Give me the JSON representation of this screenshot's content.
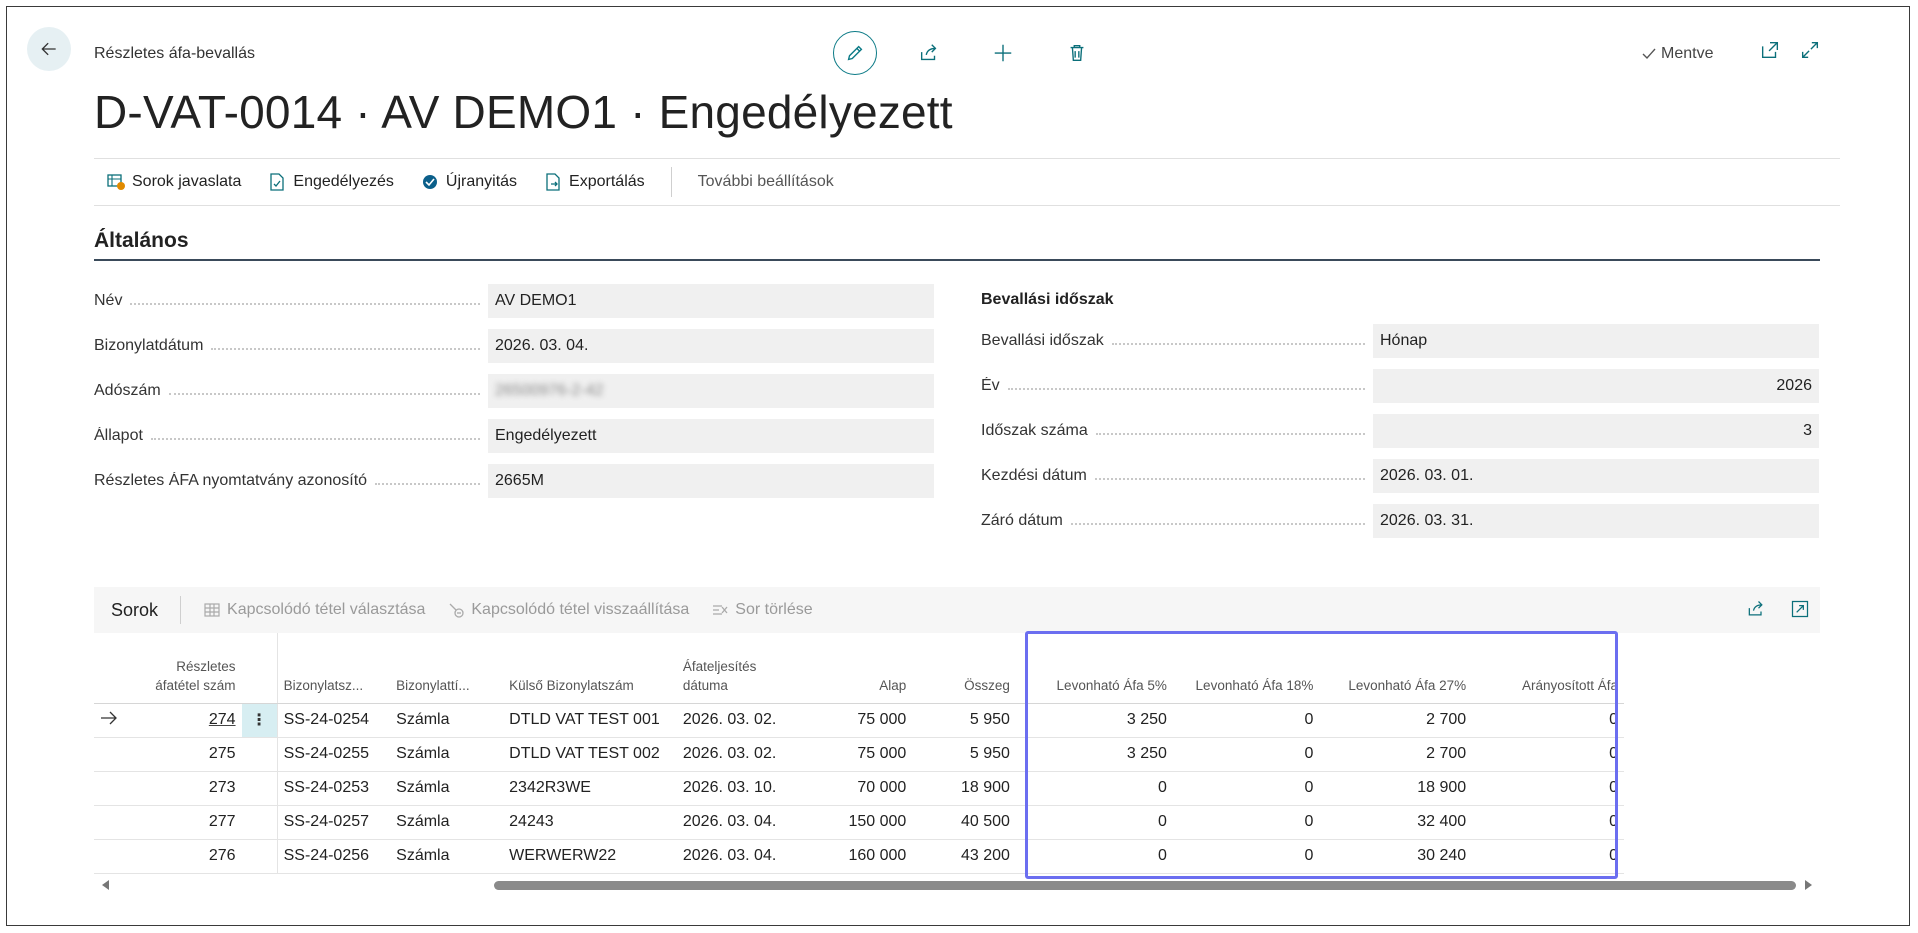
{
  "header": {
    "breadcrumb": "Részletes áfa-bevallás",
    "title": "D-VAT-0014 · AV DEMO1 · Engedélyezett",
    "saved_label": "Mentve"
  },
  "actions": [
    {
      "label": "Sorok javaslata",
      "icon": "suggest-lines-icon"
    },
    {
      "label": "Engedélyezés",
      "icon": "release-icon"
    },
    {
      "label": "Újranyitás",
      "icon": "reopen-icon"
    },
    {
      "label": "Exportálás",
      "icon": "export-icon"
    }
  ],
  "more_options": "További beállítások",
  "general": {
    "title": "Általános",
    "left": [
      {
        "label": "Név",
        "value": "AV DEMO1"
      },
      {
        "label": "Bizonylatdátum",
        "value": "2026. 03. 04."
      },
      {
        "label": "Adószám",
        "value": "26500976-2-42"
      },
      {
        "label": "Állapot",
        "value": "Engedélyezett"
      },
      {
        "label": "Részletes ÁFA nyomtatvány azonosító",
        "value": "2665M"
      }
    ],
    "right_title": "Bevallási időszak",
    "right": [
      {
        "label": "Bevallási időszak",
        "value": "Hónap"
      },
      {
        "label": "Év",
        "value": "2026"
      },
      {
        "label": "Időszak száma",
        "value": "3"
      },
      {
        "label": "Kezdési dátum",
        "value": "2026. 03. 01."
      },
      {
        "label": "Záró dátum",
        "value": "2026. 03. 31."
      }
    ]
  },
  "lines": {
    "title": "Sorok",
    "actions": [
      {
        "label": "Kapcsolódó tétel választása"
      },
      {
        "label": "Kapcsolódó tétel visszaállítása"
      },
      {
        "label": "Sor törlése"
      }
    ],
    "columns": {
      "id": "Részletes áfatétel szám",
      "doc_no": "Bizonylatsz...",
      "doc_type": "Bizonylattí...",
      "ext_doc": "Külső Bizonylatszám",
      "vat_date": "Áfateljesítés dátuma",
      "base": "Alap",
      "amount": "Összeg",
      "ded5": "Levonható Áfa 5%",
      "ded18": "Levonható Áfa 18%",
      "ded27": "Levonható Áfa 27%",
      "prop": "Arányosított Áfa"
    },
    "rows": [
      {
        "id": "274",
        "doc_no": "SS-24-0254",
        "doc_type": "Számla",
        "ext_doc": "DTLD VAT TEST 001",
        "vat_date": "2026. 03. 02.",
        "base": "75 000",
        "amount": "5 950",
        "ded5": "3 250",
        "ded18": "0",
        "ded27": "2 700",
        "prop": "0"
      },
      {
        "id": "275",
        "doc_no": "SS-24-0255",
        "doc_type": "Számla",
        "ext_doc": "DTLD VAT TEST 002",
        "vat_date": "2026. 03. 02.",
        "base": "75 000",
        "amount": "5 950",
        "ded5": "3 250",
        "ded18": "0",
        "ded27": "2 700",
        "prop": "0"
      },
      {
        "id": "273",
        "doc_no": "SS-24-0253",
        "doc_type": "Számla",
        "ext_doc": "2342R3WE",
        "vat_date": "2026. 03. 10.",
        "base": "70 000",
        "amount": "18 900",
        "ded5": "0",
        "ded18": "0",
        "ded27": "18 900",
        "prop": "0"
      },
      {
        "id": "277",
        "doc_no": "SS-24-0257",
        "doc_type": "Számla",
        "ext_doc": "24243",
        "vat_date": "2026. 03. 04.",
        "base": "150 000",
        "amount": "40 500",
        "ded5": "0",
        "ded18": "0",
        "ded27": "32 400",
        "prop": "0"
      },
      {
        "id": "276",
        "doc_no": "SS-24-0256",
        "doc_type": "Számla",
        "ext_doc": "WERWERW22",
        "vat_date": "2026. 03. 04.",
        "base": "160 000",
        "amount": "43 200",
        "ded5": "0",
        "ded18": "0",
        "ded27": "30 240",
        "prop": "0"
      }
    ],
    "row_menu_glyph": "⋮"
  },
  "colors": {
    "accent": "#0b7a86",
    "highlight": "#6b6ef0"
  }
}
